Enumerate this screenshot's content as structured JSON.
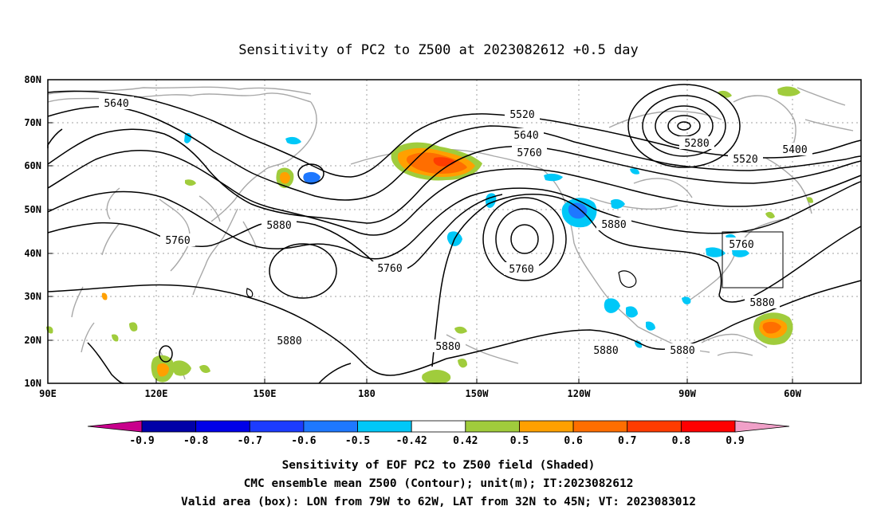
{
  "title": "Sensitivity of PC2 to Z500 at 2023082612 +0.5 day",
  "lat_labels": [
    "80N",
    "70N",
    "60N",
    "50N",
    "40N",
    "30N",
    "20N",
    "10N"
  ],
  "lon_labels": [
    "90E",
    "120E",
    "150E",
    "180",
    "150W",
    "120W",
    "90W",
    "60W"
  ],
  "contour_labels": [
    "5640",
    "5520",
    "5640",
    "5760",
    "5280",
    "5400",
    "5520",
    "5760",
    "5880",
    "5880",
    "5760",
    "5760",
    "5880",
    "5760",
    "5880",
    "5880",
    "5880",
    "5880",
    "5880"
  ],
  "colorbar": {
    "labels": [
      "-0.9",
      "-0.8",
      "-0.7",
      "-0.6",
      "-0.5",
      "-0.42",
      "0.42",
      "0.5",
      "0.6",
      "0.7",
      "0.8",
      "0.9"
    ],
    "colors": [
      "#0000a8",
      "#0000e8",
      "#1c3cff",
      "#1e78ff",
      "#00c8f8",
      "#ffffff",
      "#a0cc3c",
      "#ffa000",
      "#ff6e00",
      "#ff3c00",
      "#ff0000"
    ],
    "left_cap_color": "#c8008c",
    "right_cap_color": "#f0a0c8"
  },
  "footer": {
    "line1": "Sensitivity of EOF PC2 to Z500 field (Shaded)",
    "line2": "CMC ensemble mean Z500 (Contour); unit(m); IT:2023082612",
    "line3": "Valid area (box): LON from 79W to 62W, LAT from 32N to 45N; VT: 2023083012"
  }
}
